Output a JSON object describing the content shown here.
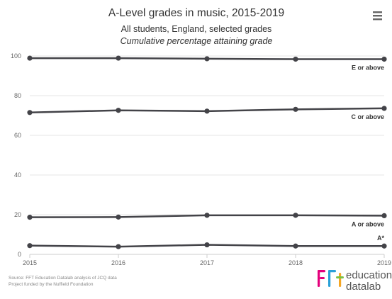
{
  "chart_data": {
    "type": "line",
    "title": "A-Level grades in music, 2015-2019",
    "subtitle": "All students, England, selected grades",
    "subtitle2": "Cumulative percentage attaining grade",
    "x": [
      "2015",
      "2016",
      "2017",
      "2018",
      "2019"
    ],
    "xlabel": "",
    "ylabel": "",
    "ylim": [
      0,
      100
    ],
    "yticks": [
      0,
      20,
      40,
      60,
      80,
      100
    ],
    "grid": true,
    "series": [
      {
        "name": "E or above",
        "values": [
          98.9,
          98.9,
          98.6,
          98.4,
          98.4
        ]
      },
      {
        "name": "C or above",
        "values": [
          71.5,
          72.6,
          72.2,
          73.1,
          73.6
        ]
      },
      {
        "name": "A or above",
        "values": [
          18.7,
          18.8,
          19.7,
          19.7,
          19.5
        ]
      },
      {
        "name": "A*",
        "values": [
          4.4,
          3.9,
          4.8,
          4.2,
          4.2
        ]
      }
    ],
    "line_color": "#434348",
    "grid_color": "#e6e6e6"
  },
  "source": {
    "line1": "Source: FFT Education Datalab analysis of JCQ data",
    "line2": "Project funded by the Nuffield Foundation"
  },
  "logo": {
    "mark": "fft",
    "word1": "education",
    "word2": "datalab",
    "colors": [
      "#e4007c",
      "#2aa0d8",
      "#f5a623",
      "#7ac143"
    ]
  },
  "menu_icon": "hamburger-menu-icon"
}
